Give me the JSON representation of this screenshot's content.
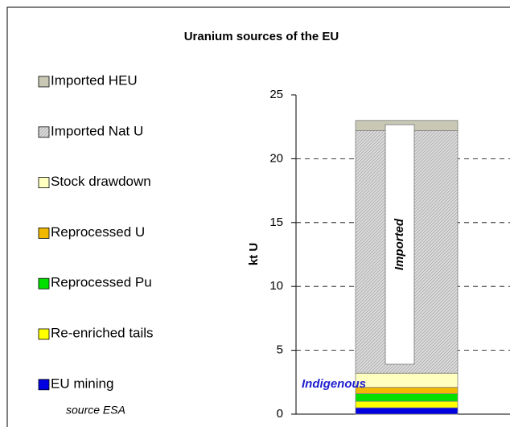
{
  "chart_data": {
    "type": "stacked_bar",
    "title": "Uranium sources of the EU",
    "ylabel": "kt U",
    "categories": [
      null
    ],
    "series": [
      {
        "name": "EU mining",
        "color": "#0000e0",
        "values": [
          0.5
        ]
      },
      {
        "name": "Re-enriched tails",
        "color": "#ffff00",
        "values": [
          0.5
        ]
      },
      {
        "name": "Reprocessed Pu",
        "color": "#00e000",
        "values": [
          0.6
        ]
      },
      {
        "name": "Reprocessed U",
        "color": "#f0b800",
        "values": [
          0.5
        ]
      },
      {
        "name": "Stock drawdown",
        "color": "#ffffc0",
        "values": [
          1.1
        ]
      },
      {
        "name": "Imported Nat U",
        "color": "#dcdcdc",
        "values": [
          19.0
        ],
        "hatched": true
      },
      {
        "name": "Imported HEU",
        "color": "#c8c8b4",
        "values": [
          0.8
        ]
      }
    ],
    "ylim": [
      0,
      25
    ],
    "yticks": [
      0,
      5,
      10,
      15,
      20,
      25
    ],
    "grid": true,
    "annotations": {
      "imported": "Imported",
      "indigenous": "Indigenous",
      "source": "source ESA"
    }
  }
}
